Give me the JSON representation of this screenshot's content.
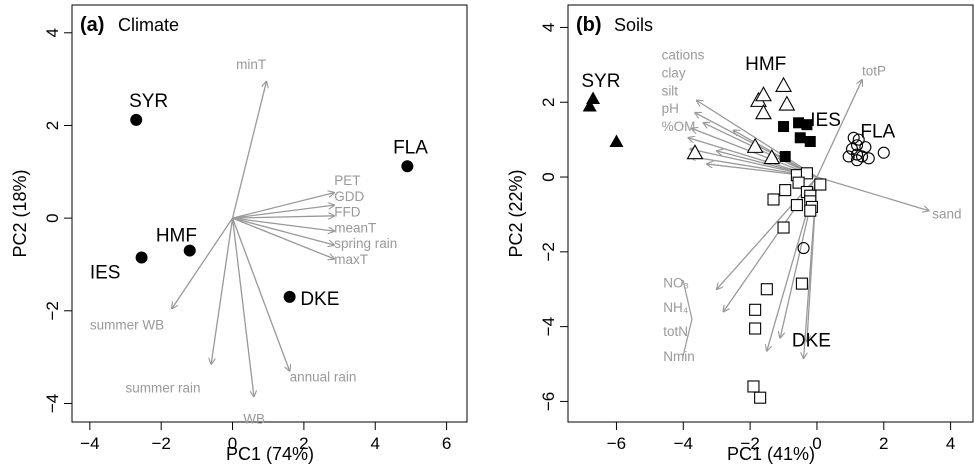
{
  "colors": {
    "arrow": "#999999",
    "text": "#000000",
    "point": "#000000",
    "background": "#ffffff"
  },
  "chart_data": [
    {
      "type": "scatter",
      "panel_letter": "(a)",
      "panel_name": "Climate",
      "xlabel": "PC1 (74%)",
      "ylabel": "PC2 (18%)",
      "xlim": [
        -4.5,
        6.6
      ],
      "ylim": [
        -4.4,
        4.6
      ],
      "xticks": [
        -4,
        -2,
        0,
        2,
        4,
        6
      ],
      "xtick_labels": [
        "−4",
        "−2",
        "0",
        "2",
        "4",
        "6"
      ],
      "yticks": [
        -4,
        -2,
        0,
        2,
        4
      ],
      "ytick_labels": [
        "−4",
        "−2",
        "0",
        "2",
        "4"
      ],
      "points": [
        {
          "label": "SYR",
          "x": -2.7,
          "y": 2.12,
          "marker": "filled-circle"
        },
        {
          "label": "FLA",
          "x": 4.9,
          "y": 1.12,
          "marker": "filled-circle"
        },
        {
          "label": "HMF",
          "x": -1.2,
          "y": -0.7,
          "marker": "filled-circle"
        },
        {
          "label": "IES",
          "x": -2.55,
          "y": -0.85,
          "marker": "filled-circle"
        },
        {
          "label": "DKE",
          "x": 1.6,
          "y": -1.7,
          "marker": "filled-circle"
        }
      ],
      "site_labels": [
        {
          "text": "SYR",
          "x": -2.9,
          "y": 2.55
        },
        {
          "text": "FLA",
          "x": 4.5,
          "y": 1.55
        },
        {
          "text": "HMF",
          "x": -2.15,
          "y": -0.35
        },
        {
          "text": "IES",
          "x": -4.0,
          "y": -1.15
        },
        {
          "text": "DKE",
          "x": 1.9,
          "y": -1.72
        }
      ],
      "arrows": [
        {
          "label": "minT",
          "x": 0.95,
          "y": 2.95,
          "label_x": 0.1,
          "label_y": 3.33
        },
        {
          "label": "PET",
          "x": 2.85,
          "y": 0.55,
          "label_x": 2.85,
          "label_y": 0.82
        },
        {
          "label": "GDD",
          "x": 2.85,
          "y": 0.28,
          "label_x": 2.85,
          "label_y": 0.48
        },
        {
          "label": "FFD",
          "x": 2.85,
          "y": 0.05,
          "label_x": 2.85,
          "label_y": 0.14
        },
        {
          "label": "meanT",
          "x": 2.85,
          "y": -0.28,
          "label_x": 2.85,
          "label_y": -0.2
        },
        {
          "label": "spring rain",
          "x": 2.85,
          "y": -0.58,
          "label_x": 2.85,
          "label_y": -0.54
        },
        {
          "label": "maxT",
          "x": 2.85,
          "y": -0.88,
          "label_x": 2.85,
          "label_y": -0.88
        },
        {
          "label": "summer WB",
          "x": -1.7,
          "y": -1.95,
          "label_x": -4.0,
          "label_y": -2.3
        },
        {
          "label": "summer rain",
          "x": -0.6,
          "y": -3.15,
          "label_x": -3.0,
          "label_y": -3.65
        },
        {
          "label": "annual rain",
          "x": 1.6,
          "y": -3.3,
          "label_x": 1.6,
          "label_y": -3.42
        },
        {
          "label": "WB",
          "x": 0.6,
          "y": -3.85,
          "label_x": 0.3,
          "label_y": -4.32
        }
      ]
    },
    {
      "type": "scatter",
      "panel_letter": "(b)",
      "panel_name": "Soils",
      "xlabel": "PC1 (41%)",
      "ylabel": "PC2 (22%)",
      "xlim": [
        -7.45,
        4.7
      ],
      "ylim": [
        -6.55,
        4.6
      ],
      "xticks": [
        -6,
        -4,
        -2,
        0,
        2,
        4
      ],
      "xtick_labels": [
        "−6",
        "−4",
        "−2",
        "0",
        "2",
        "4"
      ],
      "yticks": [
        -6,
        -4,
        -2,
        0,
        2,
        4
      ],
      "ytick_labels": [
        "−6",
        "−4",
        "−2",
        "0",
        "2",
        "4"
      ],
      "site_labels": [
        {
          "text": "SYR",
          "x": -7.05,
          "y": 2.6
        },
        {
          "text": "HMF",
          "x": -2.15,
          "y": 3.05
        },
        {
          "text": "IES",
          "x": -0.2,
          "y": 1.55
        },
        {
          "text": "FLA",
          "x": 1.3,
          "y": 1.25
        },
        {
          "text": "DKE",
          "x": -0.75,
          "y": -4.35
        }
      ],
      "groups": [
        {
          "site": "SYR",
          "marker": "filled-triangle",
          "points": [
            [
              -6.7,
              2.1
            ],
            [
              -6.8,
              1.9
            ],
            [
              -6.0,
              0.95
            ]
          ]
        },
        {
          "site": "HMF",
          "marker": "open-triangle",
          "points": [
            [
              -1.0,
              2.45
            ],
            [
              -1.75,
              2.05
            ],
            [
              -1.6,
              2.2
            ],
            [
              -0.9,
              1.95
            ],
            [
              -1.6,
              1.72
            ],
            [
              -3.65,
              0.65
            ],
            [
              -1.85,
              0.82
            ],
            [
              -1.35,
              0.52
            ]
          ]
        },
        {
          "site": "IES",
          "marker": "filled-square",
          "points": [
            [
              -0.55,
              1.45
            ],
            [
              -0.3,
              1.4
            ],
            [
              -1.0,
              1.35
            ],
            [
              -0.5,
              1.05
            ],
            [
              -0.2,
              0.95
            ],
            [
              -0.95,
              0.55
            ]
          ]
        },
        {
          "site": "FLA",
          "marker": "open-circle",
          "points": [
            [
              1.1,
              1.05
            ],
            [
              1.25,
              1.0
            ],
            [
              1.2,
              0.85
            ],
            [
              1.05,
              0.75
            ],
            [
              1.45,
              0.8
            ],
            [
              1.2,
              0.6
            ],
            [
              1.35,
              0.55
            ],
            [
              1.2,
              0.45
            ],
            [
              1.55,
              0.5
            ],
            [
              0.95,
              0.55
            ],
            [
              2.0,
              0.65
            ],
            [
              -0.4,
              -1.9
            ]
          ]
        },
        {
          "site": "DKE",
          "marker": "open-square",
          "points": [
            [
              -0.6,
              0.05
            ],
            [
              -0.3,
              0.1
            ],
            [
              -0.55,
              -0.15
            ],
            [
              0.1,
              -0.2
            ],
            [
              -0.95,
              -0.35
            ],
            [
              -0.3,
              -0.4
            ],
            [
              -0.2,
              -0.5
            ],
            [
              -1.3,
              -0.6
            ],
            [
              -0.2,
              -0.65
            ],
            [
              -0.6,
              -0.75
            ],
            [
              -0.15,
              -0.8
            ],
            [
              -0.2,
              -0.9
            ],
            [
              -1.0,
              -1.35
            ],
            [
              -0.45,
              -2.85
            ],
            [
              -1.5,
              -3.0
            ],
            [
              -1.85,
              -3.55
            ],
            [
              -1.85,
              -4.05
            ],
            [
              -1.9,
              -5.6
            ],
            [
              -1.7,
              -5.9
            ]
          ]
        }
      ],
      "arrows": [
        {
          "label": "totP",
          "x": 1.35,
          "y": 2.6,
          "label_x": 1.35,
          "label_y": 2.85
        },
        {
          "label": "sand",
          "x": 3.35,
          "y": -0.9,
          "label_x": 3.45,
          "label_y": -0.97
        },
        {
          "label": "cations",
          "x": -3.6,
          "y": 2.05,
          "label_x": -4.65,
          "label_y": 3.28
        },
        {
          "label": "clay",
          "x": -3.65,
          "y": 1.72,
          "label_x": -4.65,
          "label_y": 2.8
        },
        {
          "label": "silt",
          "x": -3.75,
          "y": 1.3,
          "label_x": -4.65,
          "label_y": 2.32
        },
        {
          "label": "pH",
          "x": -3.85,
          "y": 1.05,
          "label_x": -4.65,
          "label_y": 1.84
        },
        {
          "label": "%OM",
          "x": -3.8,
          "y": 0.75,
          "label_x": -4.65,
          "label_y": 1.36
        },
        {
          "label": "",
          "x": -3.8,
          "y": 0.55
        },
        {
          "label": "",
          "x": -3.3,
          "y": 0.35
        },
        {
          "label": "",
          "x": -3.0,
          "y": 0.7
        },
        {
          "label": "",
          "x": -2.5,
          "y": 1.25
        },
        {
          "label": "",
          "x": -3.4,
          "y": 1.45
        },
        {
          "label": "NO₃",
          "x": -3.0,
          "y": -3.0,
          "label_x": -4.6,
          "label_y": -2.82
        },
        {
          "label": "NH₄",
          "x": -2.8,
          "y": -3.6,
          "label_x": -4.6,
          "label_y": -3.48
        },
        {
          "label": "totN",
          "x": -1.5,
          "y": -4.65,
          "label_x": -4.6,
          "label_y": -4.12
        },
        {
          "label": "Nmin",
          "x": -0.4,
          "y": -4.85,
          "label_x": -4.6,
          "label_y": -4.78
        },
        {
          "label": "",
          "x": -1.1,
          "y": -4.3
        },
        {
          "label": "",
          "x": -0.3,
          "y": -4.4
        }
      ]
    }
  ]
}
